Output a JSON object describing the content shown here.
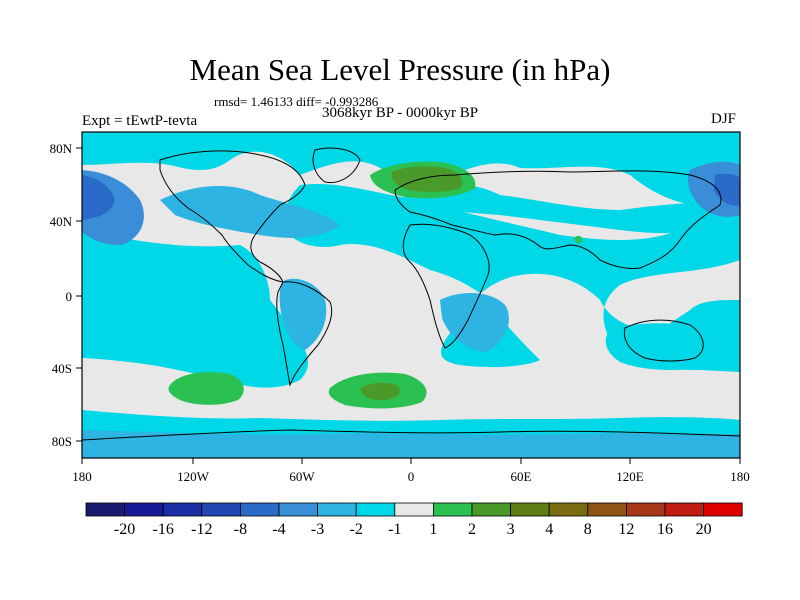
{
  "title": "Mean Sea Level Pressure (in hPa)",
  "stats": "rmsd= 1.46133 diff= -0.993286",
  "period": "3068kyr BP - 0000kyr BP",
  "expt_label": "Expt = tEwtP-tevta",
  "season": "DJF",
  "lat_ticks": [
    "80N",
    "40N",
    "0",
    "40S",
    "80S"
  ],
  "lon_ticks": [
    "180",
    "120W",
    "60W",
    "0",
    "60E",
    "120E",
    "180"
  ],
  "colorbar": {
    "colors": [
      "#1a1a6e",
      "#161a96",
      "#1a2ea6",
      "#2246b4",
      "#2a6ac8",
      "#3a8ed8",
      "#2eb4e2",
      "#00d8e8",
      "#e8e8e8",
      "#2ac052",
      "#4a9a2a",
      "#5e7e14",
      "#7a6a10",
      "#8e5414",
      "#a8381a",
      "#c01c12",
      "#e00000"
    ],
    "labels": [
      "-20",
      "-16",
      "-12",
      "-8",
      "-4",
      "-3",
      "-2",
      "-1",
      "1",
      "2",
      "3",
      "4",
      "8",
      "12",
      "16",
      "20"
    ]
  },
  "map_colors": {
    "frame": "#000000",
    "coast": "#000000"
  }
}
